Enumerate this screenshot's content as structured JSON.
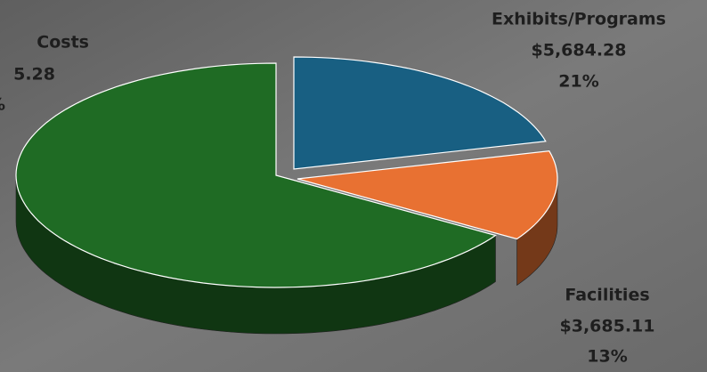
{
  "chart_data": {
    "type": "pie",
    "categories": [
      "Costs",
      "Exhibits/Programs",
      "Facilities"
    ],
    "amounts": [
      "5.28",
      "$5,684.28",
      "$3,685.11"
    ],
    "values": [
      66,
      21,
      13
    ],
    "value_labels": [
      "%",
      "21%",
      "13%"
    ],
    "colors": [
      "#1f6b24",
      "#185f82",
      "#e87132"
    ],
    "3d": true
  }
}
